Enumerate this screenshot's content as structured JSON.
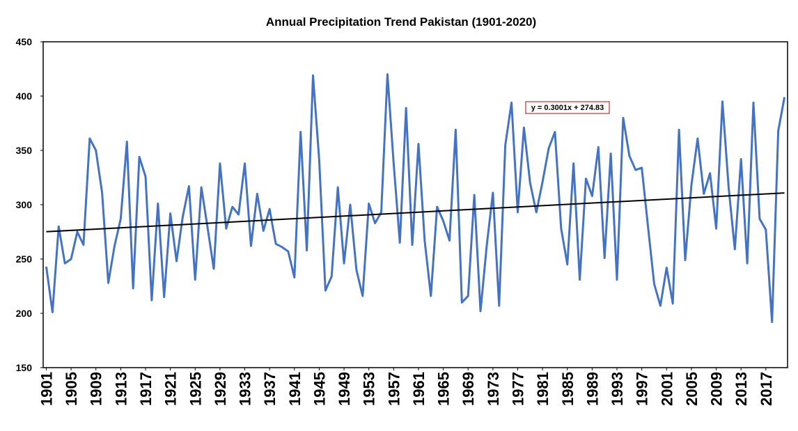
{
  "chart_data": {
    "type": "line",
    "title": "Annual Precipitation Trend Pakistan (1901-2020)",
    "x": [
      1901,
      1902,
      1903,
      1904,
      1905,
      1906,
      1907,
      1908,
      1909,
      1910,
      1911,
      1912,
      1913,
      1914,
      1915,
      1916,
      1917,
      1918,
      1919,
      1920,
      1921,
      1922,
      1923,
      1924,
      1925,
      1926,
      1927,
      1928,
      1929,
      1930,
      1931,
      1932,
      1933,
      1934,
      1935,
      1936,
      1937,
      1938,
      1939,
      1940,
      1941,
      1942,
      1943,
      1944,
      1945,
      1946,
      1947,
      1948,
      1949,
      1950,
      1951,
      1952,
      1953,
      1954,
      1955,
      1956,
      1957,
      1958,
      1959,
      1960,
      1961,
      1962,
      1963,
      1964,
      1965,
      1966,
      1967,
      1968,
      1969,
      1970,
      1971,
      1972,
      1973,
      1974,
      1975,
      1976,
      1977,
      1978,
      1979,
      1980,
      1981,
      1982,
      1983,
      1984,
      1985,
      1986,
      1987,
      1988,
      1989,
      1990,
      1991,
      1992,
      1993,
      1994,
      1995,
      1996,
      1997,
      1998,
      1999,
      2000,
      2001,
      2002,
      2003,
      2004,
      2005,
      2006,
      2007,
      2008,
      2009,
      2010,
      2011,
      2012,
      2013,
      2014,
      2015,
      2016,
      2017,
      2018,
      2019,
      2020
    ],
    "series": [
      {
        "name": "Annual Precipitation",
        "color": "#4472c4",
        "values": [
          243,
          201,
          280,
          246,
          250,
          275,
          263,
          361,
          350,
          311,
          228,
          262,
          287,
          358,
          223,
          344,
          326,
          212,
          301,
          215,
          292,
          248,
          289,
          317,
          231,
          316,
          279,
          241,
          338,
          278,
          298,
          291,
          338,
          262,
          310,
          276,
          296,
          264,
          261,
          257,
          233,
          367,
          258,
          419,
          341,
          221,
          234,
          316,
          246,
          300,
          240,
          216,
          301,
          283,
          293,
          420,
          338,
          265,
          389,
          263,
          356,
          267,
          216,
          298,
          285,
          267,
          369,
          210,
          216,
          309,
          202,
          262,
          311,
          207,
          355,
          394,
          293,
          371,
          320,
          293,
          321,
          352,
          367,
          278,
          245,
          338,
          231,
          324,
          308,
          353,
          251,
          347,
          231,
          380,
          345,
          332,
          334,
          280,
          227,
          207,
          242,
          209,
          369,
          249,
          318,
          361,
          310,
          329,
          278,
          395,
          316,
          259,
          342,
          246,
          394,
          287,
          277,
          192,
          368,
          399
        ]
      }
    ],
    "trendline": {
      "label": "y = 0.3001x + 274.83",
      "slope": 0.3001,
      "intercept": 274.83,
      "color": "#000000"
    },
    "xlim": [
      1900.5,
      2020.5
    ],
    "xticks": [
      1901,
      1905,
      1909,
      1913,
      1917,
      1921,
      1925,
      1929,
      1933,
      1937,
      1941,
      1945,
      1949,
      1953,
      1957,
      1961,
      1965,
      1969,
      1973,
      1977,
      1981,
      1985,
      1989,
      1993,
      1997,
      2001,
      2005,
      2009,
      2013,
      2017
    ],
    "ylim": [
      150,
      450
    ],
    "yticks": [
      150,
      200,
      250,
      300,
      350,
      400,
      450
    ],
    "grid": false
  }
}
